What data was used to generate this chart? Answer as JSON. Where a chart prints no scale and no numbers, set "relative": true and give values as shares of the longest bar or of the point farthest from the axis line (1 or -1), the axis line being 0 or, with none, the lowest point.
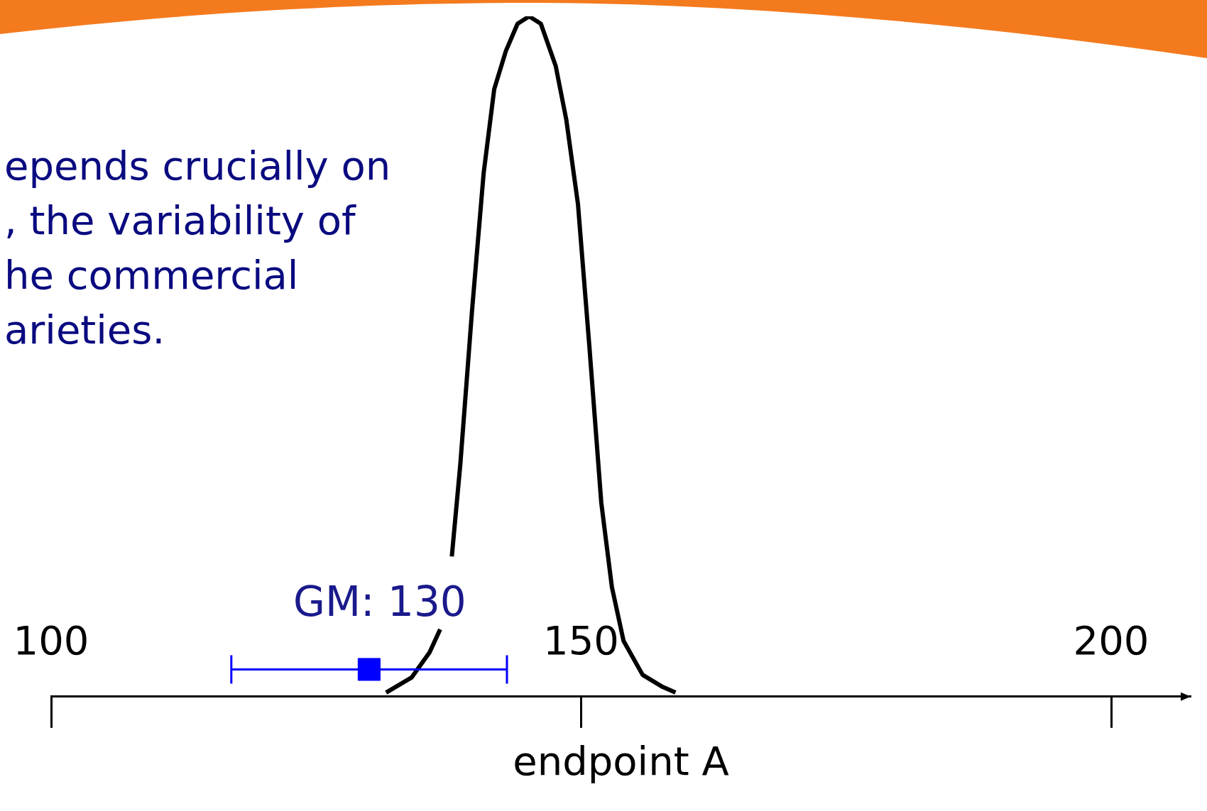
{
  "chart_data": {
    "type": "line",
    "relative": true,
    "xlabel": "endpoint A",
    "xlim": [
      100,
      207.5
    ],
    "xticks": [
      100,
      150,
      200
    ],
    "tick_labels": "x",
    "grid": false,
    "legend": false,
    "annotations": [
      "epends crucially on\n, the variability of\nhe commercial\narieties.",
      {
        "text": "GM: 130",
        "x": 130,
        "y": 0.04
      }
    ],
    "series": [
      {
        "color": "#000000",
        "marker": "none",
        "x": [
          131.6,
          134.0,
          135.7,
          136.7,
          137.2,
          137.8,
          138.6,
          139.7,
          140.8,
          141.8,
          142.9,
          144.0,
          145.1,
          146.2,
          147.6,
          148.6,
          149.7,
          150.8,
          151.9,
          152.9,
          154.0,
          155.8,
          157.6,
          158.9
        ],
        "values": [
          0.006,
          0.028,
          0.065,
          0.099,
          null,
          0.206,
          0.341,
          0.566,
          0.769,
          0.893,
          0.949,
          0.989,
          1,
          0.989,
          0.927,
          0.848,
          0.724,
          0.51,
          0.285,
          0.161,
          0.082,
          0.032,
          0.015,
          0.006
        ]
      },
      {
        "type": "scatter",
        "color": "#0000ff",
        "marker": "square",
        "x": [
          130
        ],
        "values": [
          0.04
        ],
        "xerrors": [
          [
            117,
            143
          ]
        ]
      }
    ]
  }
}
